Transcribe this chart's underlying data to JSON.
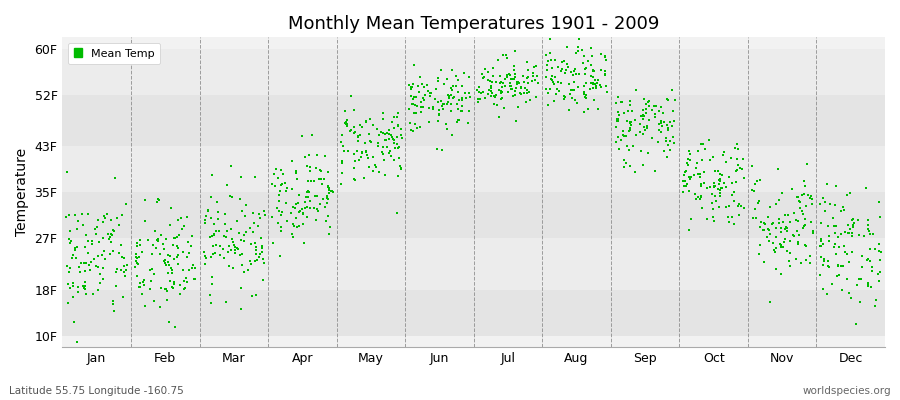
{
  "title": "Monthly Mean Temperatures 1901 - 2009",
  "ylabel": "Temperature",
  "subtitle_left": "Latitude 55.75 Longitude -160.75",
  "subtitle_right": "worldspecies.org",
  "legend_label": "Mean Temp",
  "months": [
    "Jan",
    "Feb",
    "Mar",
    "Apr",
    "May",
    "Jun",
    "Jul",
    "Aug",
    "Sep",
    "Oct",
    "Nov",
    "Dec"
  ],
  "yticks": [
    10,
    18,
    27,
    35,
    43,
    52,
    60
  ],
  "ytick_labels": [
    "10F",
    "18F",
    "27F",
    "35F",
    "43F",
    "52F",
    "60F"
  ],
  "ylim": [
    8,
    62
  ],
  "dot_color": "#00bb00",
  "bg_color": "#f2f2f2",
  "bg_stripe_light": "#ececec",
  "bg_stripe_dark": "#e4e4e4",
  "years": 109,
  "start_year": 1901,
  "monthly_means_F": [
    23.5,
    22.5,
    27.0,
    34.5,
    43.5,
    50.5,
    54.0,
    54.5,
    46.5,
    37.0,
    29.5,
    25.5
  ],
  "monthly_stds_F": [
    5.5,
    5.2,
    4.5,
    4.0,
    3.5,
    2.8,
    2.3,
    2.8,
    3.5,
    4.0,
    4.8,
    5.2
  ],
  "seed": 42,
  "xlim": [
    0,
    12
  ],
  "month_tick_positions": [
    0.5,
    1.5,
    2.5,
    3.5,
    4.5,
    5.5,
    6.5,
    7.5,
    8.5,
    9.5,
    10.5,
    11.5
  ],
  "vline_positions": [
    1,
    2,
    3,
    4,
    5,
    6,
    7,
    8,
    9,
    10,
    11
  ],
  "dot_size": 4,
  "title_fontsize": 13,
  "axis_fontsize": 9,
  "ylabel_fontsize": 10
}
